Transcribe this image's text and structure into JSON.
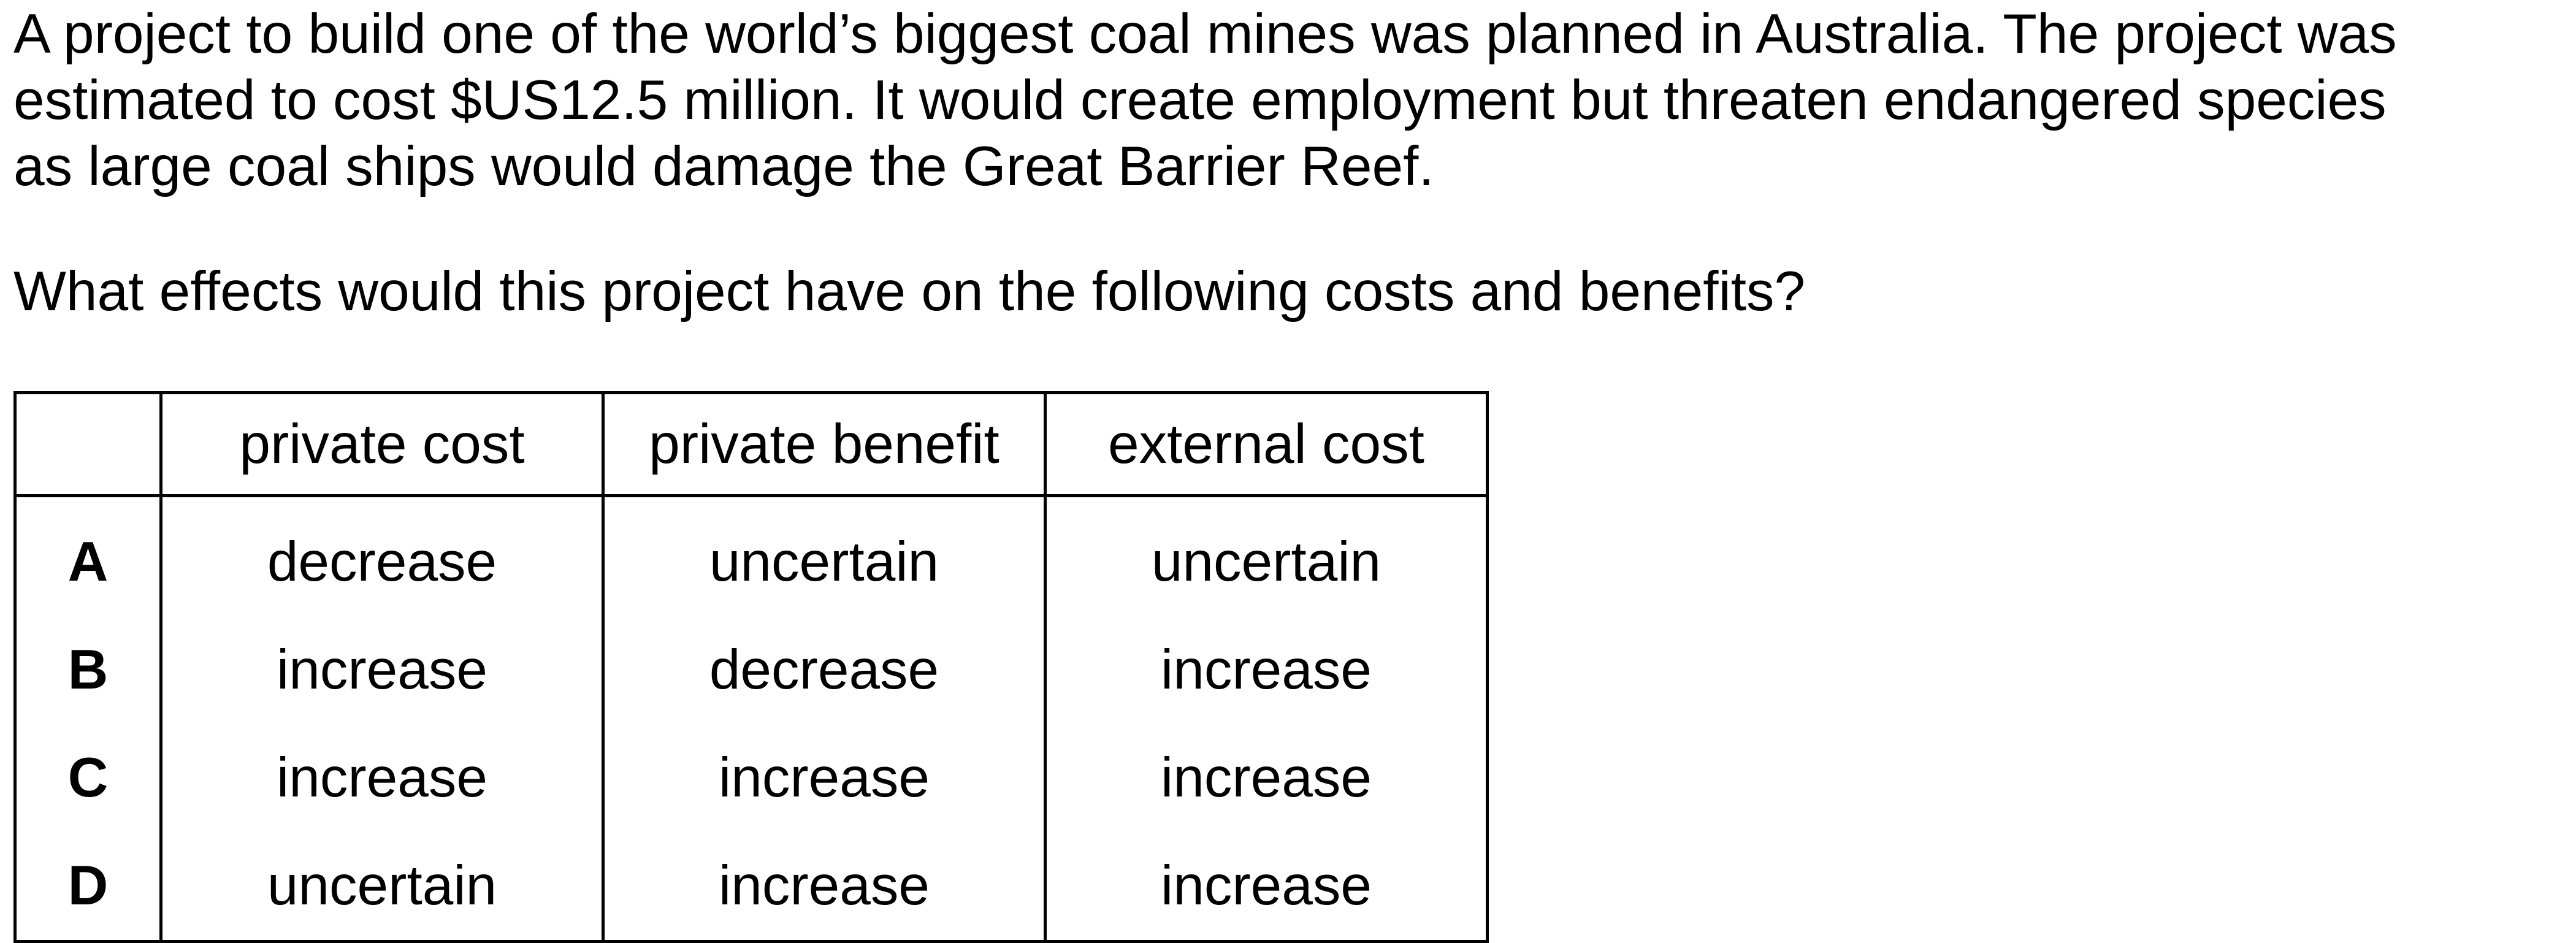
{
  "passage": {
    "lines": [
      "A project to build one of the world’s biggest coal mines was planned in Australia. The project was",
      "estimated to cost $US12.5 million. It would create employment but threaten endangered species",
      "as large coal ships would damage the Great Barrier Reef."
    ]
  },
  "question": "What effects would this project have on the following costs and benefits?",
  "table": {
    "headers": [
      "",
      "private cost",
      "private benefit",
      "external cost"
    ],
    "rows": [
      {
        "option": "A",
        "private_cost": "decrease",
        "private_benefit": "uncertain",
        "external_cost": "uncertain"
      },
      {
        "option": "B",
        "private_cost": "increase",
        "private_benefit": "decrease",
        "external_cost": "increase"
      },
      {
        "option": "C",
        "private_cost": "increase",
        "private_benefit": "increase",
        "external_cost": "increase"
      },
      {
        "option": "D",
        "private_cost": "uncertain",
        "private_benefit": "increase",
        "external_cost": "increase"
      }
    ]
  }
}
